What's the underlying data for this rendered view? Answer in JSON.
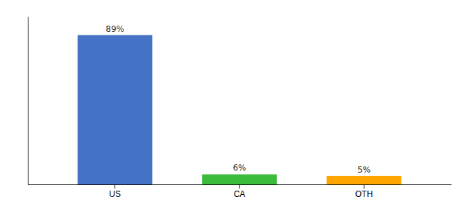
{
  "chart_data": {
    "type": "bar",
    "categories": [
      "US",
      "CA",
      "OTH"
    ],
    "values": [
      89,
      6,
      5
    ],
    "value_labels": [
      "89%",
      "6%",
      "5%"
    ],
    "colors": [
      "#4472C4",
      "#3DBB3D",
      "#FFA500"
    ],
    "ylim": [
      0,
      100
    ],
    "data_labels": true,
    "tick_labels": "x",
    "grid": false
  }
}
